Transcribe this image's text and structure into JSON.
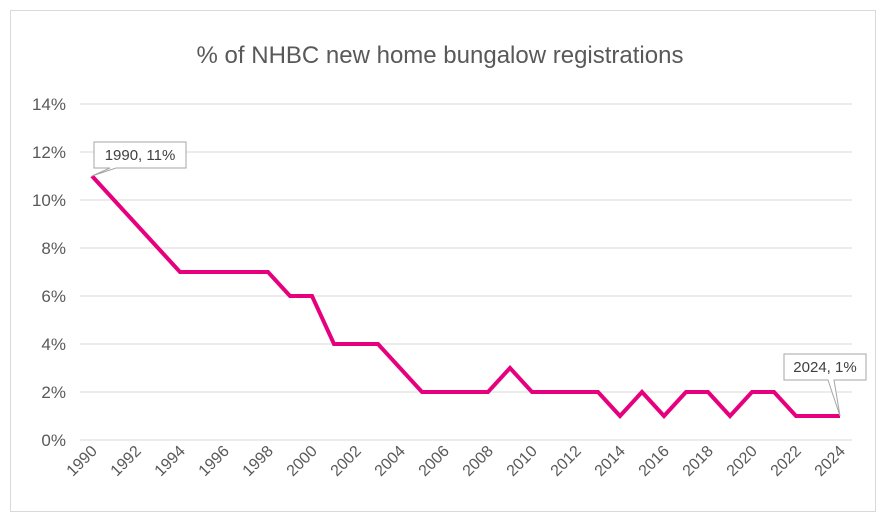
{
  "chart_data": {
    "type": "line",
    "title": "% of NHBC new home bungalow registrations",
    "xlabel": "",
    "ylabel": "",
    "ylim": [
      0,
      14
    ],
    "yticks": [
      "0%",
      "2%",
      "4%",
      "6%",
      "8%",
      "10%",
      "12%",
      "14%"
    ],
    "xticks": [
      "1990",
      "1992",
      "1994",
      "1996",
      "1998",
      "2000",
      "2002",
      "2004",
      "2006",
      "2008",
      "2010",
      "2012",
      "2014",
      "2016",
      "2018",
      "2020",
      "2022",
      "2024"
    ],
    "grid": true,
    "legend": "none",
    "series": [
      {
        "color": "#e6007e",
        "x": [
          1990,
          1991,
          1992,
          1993,
          1994,
          1995,
          1996,
          1997,
          1998,
          1999,
          2000,
          2001,
          2002,
          2003,
          2004,
          2005,
          2006,
          2007,
          2008,
          2009,
          2010,
          2011,
          2012,
          2013,
          2014,
          2015,
          2016,
          2017,
          2018,
          2019,
          2020,
          2021,
          2022,
          2023,
          2024
        ],
        "values": [
          11,
          10,
          9,
          8,
          7,
          7,
          7,
          7,
          7,
          6,
          6,
          4,
          4,
          4,
          3,
          2,
          2,
          2,
          2,
          3,
          2,
          2,
          2,
          2,
          1,
          2,
          1,
          2,
          2,
          1,
          2,
          2,
          1,
          1,
          1
        ]
      }
    ],
    "annotations": [
      {
        "text": "1990, 11%",
        "x": 1990,
        "y": 11
      },
      {
        "text": "2024, 1%",
        "x": 2024,
        "y": 1
      }
    ]
  }
}
